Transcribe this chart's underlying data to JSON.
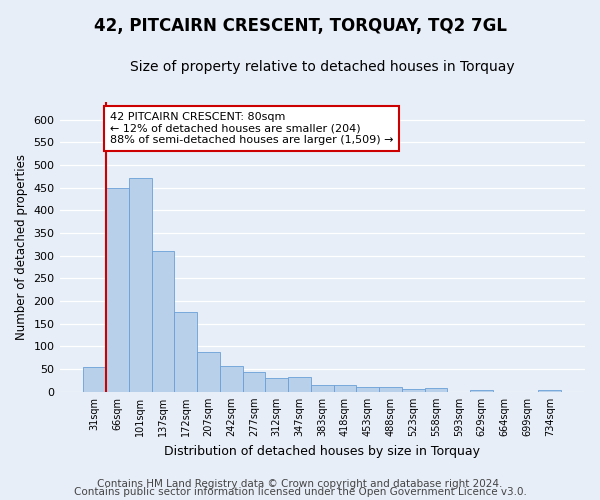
{
  "title": "42, PITCAIRN CRESCENT, TORQUAY, TQ2 7GL",
  "subtitle": "Size of property relative to detached houses in Torquay",
  "xlabel": "Distribution of detached houses by size in Torquay",
  "ylabel": "Number of detached properties",
  "categories": [
    "31sqm",
    "66sqm",
    "101sqm",
    "137sqm",
    "172sqm",
    "207sqm",
    "242sqm",
    "277sqm",
    "312sqm",
    "347sqm",
    "383sqm",
    "418sqm",
    "453sqm",
    "488sqm",
    "523sqm",
    "558sqm",
    "593sqm",
    "629sqm",
    "664sqm",
    "699sqm",
    "734sqm"
  ],
  "values": [
    55,
    450,
    472,
    311,
    176,
    88,
    58,
    43,
    30,
    32,
    15,
    15,
    10,
    10,
    6,
    9,
    0,
    5,
    0,
    0,
    5
  ],
  "bar_color": "#b8d0ea",
  "bar_edge_color": "#6a9fd8",
  "ylim": [
    0,
    640
  ],
  "yticks": [
    0,
    50,
    100,
    150,
    200,
    250,
    300,
    350,
    400,
    450,
    500,
    550,
    600
  ],
  "property_line_bar_index": 1,
  "property_line_color": "#cc0000",
  "annotation_text": "42 PITCAIRN CRESCENT: 80sqm\n← 12% of detached houses are smaller (204)\n88% of semi-detached houses are larger (1,509) →",
  "annotation_box_color": "#ffffff",
  "annotation_box_edge_color": "#cc0000",
  "footer_line1": "Contains HM Land Registry data © Crown copyright and database right 2024.",
  "footer_line2": "Contains public sector information licensed under the Open Government Licence v3.0.",
  "background_color": "#e8eef8",
  "axes_background_color": "#e8eef8",
  "grid_color": "#ffffff",
  "title_fontsize": 12,
  "subtitle_fontsize": 10,
  "footer_fontsize": 7.5,
  "bar_width": 1.0
}
